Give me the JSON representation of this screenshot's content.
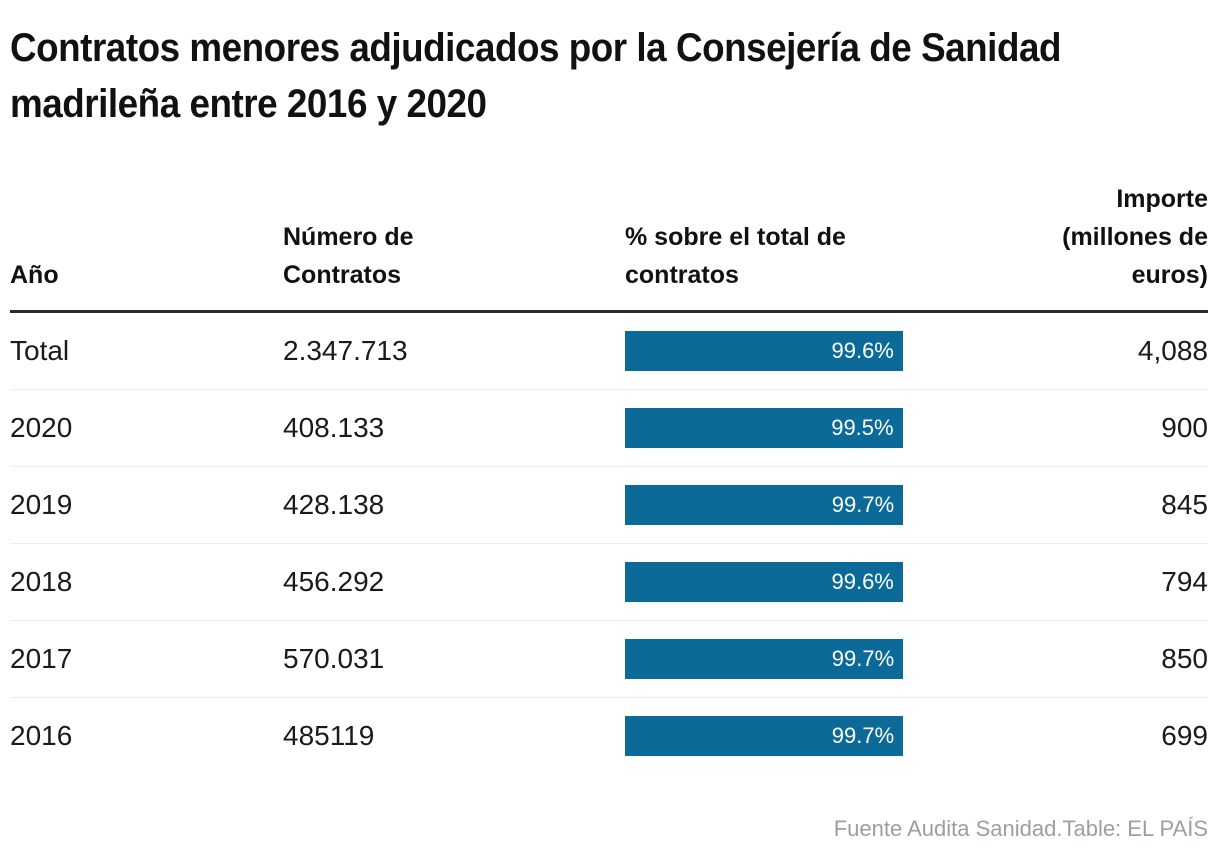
{
  "title": "Contratos menores adjudicados por la Consejería de Sanidad madrileña entre 2016 y 2020",
  "title_lines": [
    "Contratos menores adjudicados por la Consejería de Sanidad",
    "madrileña entre 2016 y 2020"
  ],
  "table": {
    "columns": [
      {
        "id": "year",
        "label": "Año",
        "align": "left"
      },
      {
        "id": "contracts",
        "label": "Número de Contratos",
        "align": "left"
      },
      {
        "id": "pct",
        "label": "% sobre el total de contratos",
        "align": "left"
      },
      {
        "id": "amount",
        "label": "Importe (millones de euros)",
        "align": "right"
      }
    ],
    "rows": [
      {
        "year": "Total",
        "contracts": "2.347.713",
        "pct": 99.6,
        "pct_label": "99.6%",
        "amount": "4,088"
      },
      {
        "year": "2020",
        "contracts": "408.133",
        "pct": 99.5,
        "pct_label": "99.5%",
        "amount": "900"
      },
      {
        "year": "2019",
        "contracts": "428.138",
        "pct": 99.7,
        "pct_label": "99.7%",
        "amount": "845"
      },
      {
        "year": "2018",
        "contracts": "456.292",
        "pct": 99.6,
        "pct_label": "99.6%",
        "amount": "794"
      },
      {
        "year": "2017",
        "contracts": "570.031",
        "pct": 99.7,
        "pct_label": "99.7%",
        "amount": "850"
      },
      {
        "year": "2016",
        "contracts": "485119",
        "pct": 99.7,
        "pct_label": "99.7%",
        "amount": "699"
      }
    ]
  },
  "footer": {
    "credit": "Fuente Audita Sanidad.Table: EL PAÍS"
  },
  "colors": {
    "bar": "#0c6a99",
    "bar_label": "#ffffff",
    "header_rule": "#2b2b2b",
    "row_divider": "#ededed",
    "title_text": "#111111",
    "body_text": "#1a1a1a",
    "footer_text": "#9b9fa3"
  },
  "chart_data": {
    "type": "table",
    "title": "Contratos menores adjudicados por la Consejería de Sanidad madrileña entre 2016 y 2020",
    "columns": [
      "Año",
      "Número de Contratos",
      "% sobre el total de contratos",
      "Importe (millones de euros)"
    ],
    "rows": [
      [
        "Total",
        "2.347.713",
        "99.6%",
        "4,088"
      ],
      [
        "2020",
        "408.133",
        "99.5%",
        "900"
      ],
      [
        "2019",
        "428.138",
        "99.7%",
        "845"
      ],
      [
        "2018",
        "456.292",
        "99.6%",
        "794"
      ],
      [
        "2017",
        "570.031",
        "99.7%",
        "850"
      ],
      [
        "2016",
        "485119",
        "99.7%",
        "699"
      ]
    ],
    "embedded_bars": {
      "column": "% sobre el total de contratos",
      "values": [
        99.6,
        99.5,
        99.7,
        99.6,
        99.7,
        99.7
      ],
      "axis_range": [
        0,
        100
      ],
      "color": "#0c6a99"
    },
    "legend": "none",
    "source": "Fuente Audita Sanidad.Table: EL PAÍS"
  }
}
